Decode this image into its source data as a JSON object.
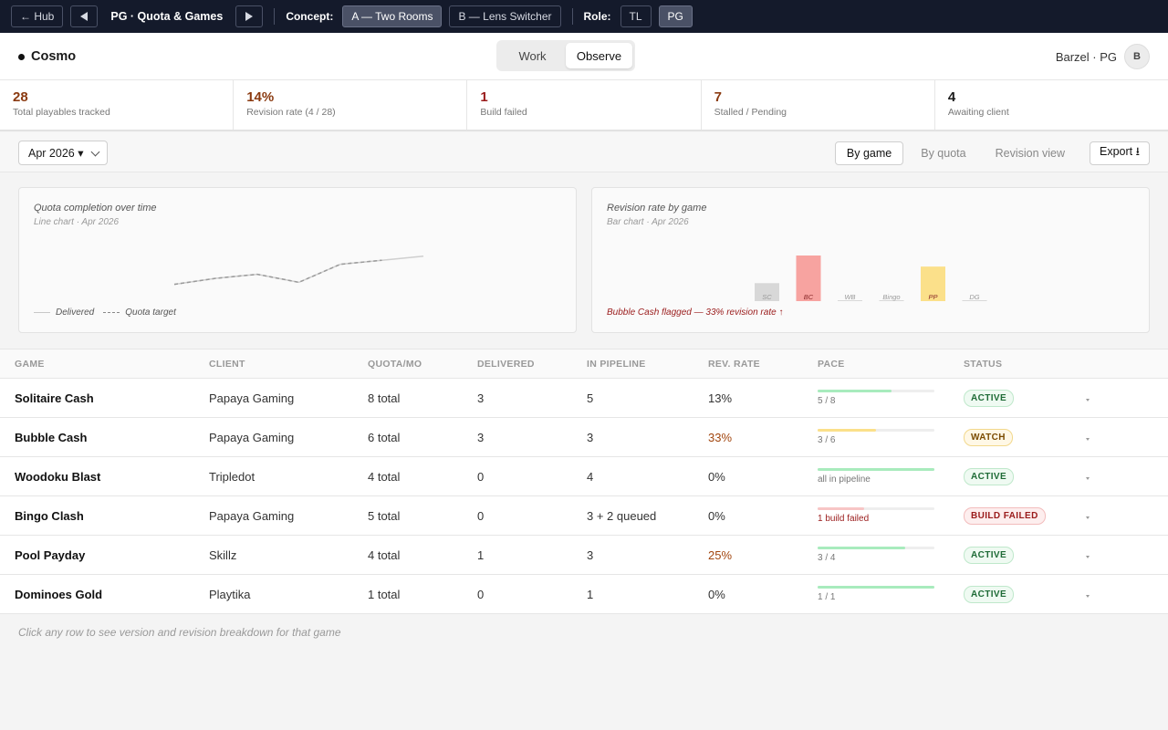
{
  "topbar": {
    "hub_label": "← Hub",
    "title": "PG · Quota & Games",
    "concept_label": "Concept:",
    "concepts": [
      "A — Two Rooms",
      "B — Lens Switcher"
    ],
    "role_label": "Role:",
    "roles": [
      "TL",
      "PG"
    ]
  },
  "header": {
    "brand": "Cosmo",
    "modes": [
      "Work",
      "Observe"
    ],
    "user": "Barzel · PG",
    "avatar": "B"
  },
  "kpis": [
    {
      "value": "28",
      "label": "Total playables tracked",
      "color": "#8a3a10"
    },
    {
      "value": "14%",
      "label": "Revision rate (4 / 28)",
      "color": "#8a3a10"
    },
    {
      "value": "1",
      "label": "Build failed",
      "color": "#9a1b1b"
    },
    {
      "value": "7",
      "label": "Stalled / Pending",
      "color": "#8a3a10"
    },
    {
      "value": "4",
      "label": "Awaiting client",
      "color": "#1a1a1a"
    }
  ],
  "toolbar": {
    "month": "Apr 2026 ▾",
    "views": [
      "By game",
      "By quota",
      "Revision view"
    ],
    "export": "Export ⭳"
  },
  "cards": {
    "quota": {
      "title": "Quota completion over time",
      "subtitle": "Line chart · Apr 2026"
    },
    "revision": {
      "title": "Revision rate by game",
      "subtitle": "Bar chart · Apr 2026",
      "flag": "Bubble Cash flagged — 33% revision rate ↑"
    }
  },
  "chart_data": [
    {
      "type": "line",
      "series": [
        {
          "name": "Delivered",
          "values": [
            2,
            5,
            7,
            3,
            12,
            14,
            16
          ]
        },
        {
          "name": "Quota target",
          "values": [
            2,
            5,
            7,
            3,
            12,
            14
          ]
        }
      ]
    },
    {
      "type": "bar",
      "categories": [
        "SC",
        "BC",
        "WB",
        "Bingo",
        "PP",
        "DG"
      ],
      "values": [
        13,
        33,
        0,
        0,
        25,
        0
      ],
      "colors": [
        "#d8d8d8",
        "#f7a3a0",
        "#d8d8d8",
        "#d8d8d8",
        "#fbe08a",
        "#d8d8d8"
      ]
    }
  ],
  "table": {
    "headers": [
      "GAME",
      "CLIENT",
      "QUOTA/MO",
      "DELIVERED",
      "IN PIPELINE",
      "REV. RATE",
      "PACE",
      "STATUS"
    ],
    "rows": [
      {
        "game": "Solitaire Cash",
        "client": "Papaya Gaming",
        "quota": "8 total",
        "delivered": "3",
        "pipeline": "5",
        "rate": "13%",
        "rate_warn": false,
        "pace_text": "5 / 8",
        "pace_fill": 0.63,
        "pace_color": "#a8ebbd",
        "pace_err": false,
        "status": "ACTIVE",
        "status_kind": "active"
      },
      {
        "game": "Bubble Cash",
        "client": "Papaya Gaming",
        "quota": "6 total",
        "delivered": "3",
        "pipeline": "3",
        "rate": "33%",
        "rate_warn": true,
        "pace_text": "3 / 6",
        "pace_fill": 0.5,
        "pace_color": "#fbe08a",
        "pace_err": false,
        "status": "WATCH",
        "status_kind": "watch"
      },
      {
        "game": "Woodoku Blast",
        "client": "Tripledot",
        "quota": "4 total",
        "delivered": "0",
        "pipeline": "4",
        "rate": "0%",
        "rate_warn": false,
        "pace_text": "all in pipeline",
        "pace_fill": 1.0,
        "pace_color": "#a8ebbd",
        "pace_err": false,
        "status": "ACTIVE",
        "status_kind": "active"
      },
      {
        "game": "Bingo Clash",
        "client": "Papaya Gaming",
        "quota": "5 total",
        "delivered": "0",
        "pipeline": "3 + 2 queued",
        "rate": "0%",
        "rate_warn": false,
        "pace_text": "1 build failed",
        "pace_fill": 0.4,
        "pace_color": "#f7c5c5",
        "pace_err": true,
        "status": "BUILD FAILED",
        "status_kind": "failed"
      },
      {
        "game": "Pool Payday",
        "client": "Skillz",
        "quota": "4 total",
        "delivered": "1",
        "pipeline": "3",
        "rate": "25%",
        "rate_warn": true,
        "pace_text": "3 / 4",
        "pace_fill": 0.75,
        "pace_color": "#a8ebbd",
        "pace_err": false,
        "status": "ACTIVE",
        "status_kind": "active"
      },
      {
        "game": "Dominoes Gold",
        "client": "Playtika",
        "quota": "1 total",
        "delivered": "0",
        "pipeline": "1",
        "rate": "0%",
        "rate_warn": false,
        "pace_text": "1 / 1",
        "pace_fill": 1.0,
        "pace_color": "#a8ebbd",
        "pace_err": false,
        "status": "ACTIVE",
        "status_kind": "active"
      }
    ]
  },
  "footnote": "Click any row to see version and revision breakdown for that game"
}
